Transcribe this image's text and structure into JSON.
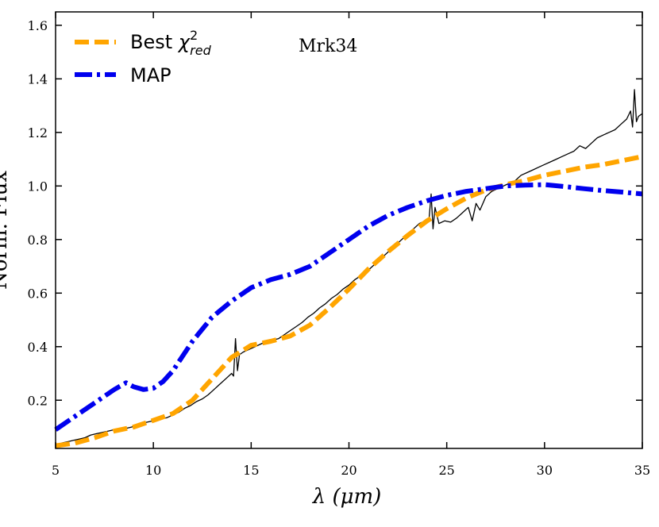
{
  "chart_data": {
    "type": "line",
    "title": "",
    "annotation": "Mrk34",
    "xlabel": "λ (μm)",
    "ylabel": "Norm. Flux",
    "xlim": [
      5,
      35
    ],
    "ylim": [
      0.02,
      1.65
    ],
    "xticks": [
      5,
      10,
      15,
      20,
      25,
      30,
      35
    ],
    "xtick_labels": [
      "5",
      "10",
      "15",
      "20",
      "25",
      "30",
      "35"
    ],
    "yticks": [
      0.2,
      0.4,
      0.6,
      0.8,
      1.0,
      1.2,
      1.4,
      1.6
    ],
    "ytick_labels": [
      "0.2",
      "0.4",
      "0.6",
      "0.8",
      "1.0",
      "1.2",
      "1.4",
      "1.6"
    ],
    "legend": {
      "placement": "top-left",
      "entries": [
        {
          "series": "best",
          "label_main": "Best ",
          "label_chi": "χ",
          "label_sup": "2",
          "label_sub": "red"
        },
        {
          "series": "map",
          "label_main": "MAP"
        }
      ]
    },
    "series": [
      {
        "name": "observed",
        "color": "#000000",
        "style": "solid",
        "x": [
          5.0,
          5.3,
          5.6,
          5.9,
          6.2,
          6.5,
          6.8,
          7.1,
          7.4,
          7.7,
          8.0,
          8.3,
          8.6,
          8.9,
          9.2,
          9.5,
          9.8,
          10.1,
          10.4,
          10.7,
          11.0,
          11.3,
          11.6,
          11.9,
          12.2,
          12.5,
          12.8,
          13.1,
          13.4,
          13.7,
          14.0,
          14.1,
          14.2,
          14.3,
          14.4,
          14.6,
          14.9,
          15.2,
          15.5,
          15.8,
          16.1,
          16.4,
          16.7,
          17.0,
          17.3,
          17.6,
          17.9,
          18.2,
          18.5,
          18.8,
          19.1,
          19.4,
          19.7,
          20.0,
          20.3,
          20.6,
          20.9,
          21.2,
          21.5,
          21.8,
          22.1,
          22.4,
          22.7,
          23.0,
          23.3,
          23.6,
          23.9,
          24.1,
          24.2,
          24.3,
          24.4,
          24.6,
          24.9,
          25.2,
          25.5,
          25.8,
          26.1,
          26.3,
          26.5,
          26.7,
          27.0,
          27.3,
          27.6,
          27.9,
          28.2,
          28.5,
          28.8,
          29.1,
          29.4,
          29.7,
          30.0,
          30.3,
          30.6,
          30.9,
          31.2,
          31.5,
          31.8,
          32.1,
          32.4,
          32.7,
          33.0,
          33.3,
          33.6,
          33.9,
          34.2,
          34.4,
          34.5,
          34.6,
          34.7,
          34.8,
          35.0
        ],
        "y": [
          0.03,
          0.04,
          0.045,
          0.05,
          0.055,
          0.06,
          0.07,
          0.075,
          0.08,
          0.085,
          0.09,
          0.085,
          0.095,
          0.1,
          0.11,
          0.115,
          0.12,
          0.125,
          0.13,
          0.135,
          0.145,
          0.155,
          0.17,
          0.18,
          0.195,
          0.205,
          0.22,
          0.24,
          0.26,
          0.28,
          0.3,
          0.29,
          0.43,
          0.31,
          0.37,
          0.38,
          0.39,
          0.4,
          0.41,
          0.42,
          0.425,
          0.43,
          0.445,
          0.46,
          0.475,
          0.49,
          0.51,
          0.525,
          0.545,
          0.56,
          0.58,
          0.595,
          0.615,
          0.63,
          0.65,
          0.665,
          0.68,
          0.7,
          0.72,
          0.74,
          0.76,
          0.78,
          0.8,
          0.82,
          0.84,
          0.86,
          0.87,
          0.88,
          0.97,
          0.84,
          0.92,
          0.86,
          0.87,
          0.865,
          0.88,
          0.9,
          0.92,
          0.87,
          0.935,
          0.91,
          0.96,
          0.98,
          0.99,
          1.0,
          1.01,
          1.02,
          1.04,
          1.05,
          1.06,
          1.07,
          1.08,
          1.09,
          1.1,
          1.11,
          1.12,
          1.13,
          1.15,
          1.14,
          1.16,
          1.18,
          1.19,
          1.2,
          1.21,
          1.23,
          1.25,
          1.28,
          1.22,
          1.36,
          1.24,
          1.26,
          1.27
        ]
      },
      {
        "name": "best",
        "color": "#FFA500",
        "style": "dashed",
        "x": [
          5.0,
          6.0,
          7.0,
          8.0,
          9.0,
          10.0,
          11.0,
          12.0,
          13.0,
          14.0,
          15.0,
          16.0,
          17.0,
          18.0,
          19.0,
          20.0,
          21.0,
          22.0,
          23.0,
          24.0,
          25.0,
          26.0,
          27.0,
          28.0,
          29.0,
          30.0,
          31.0,
          32.0,
          33.0,
          34.0,
          35.0
        ],
        "y": [
          0.03,
          0.04,
          0.06,
          0.085,
          0.1,
          0.125,
          0.15,
          0.2,
          0.28,
          0.36,
          0.405,
          0.42,
          0.44,
          0.48,
          0.545,
          0.615,
          0.69,
          0.755,
          0.815,
          0.87,
          0.915,
          0.955,
          0.985,
          1.005,
          1.02,
          1.04,
          1.055,
          1.07,
          1.08,
          1.095,
          1.11
        ]
      },
      {
        "name": "map",
        "color": "#0000EE",
        "style": "dashdot",
        "x": [
          5.0,
          6.0,
          7.0,
          8.0,
          8.6,
          9.0,
          9.5,
          10.0,
          10.5,
          11.0,
          12.0,
          13.0,
          14.0,
          15.0,
          16.0,
          17.0,
          18.0,
          19.0,
          20.0,
          21.0,
          22.0,
          23.0,
          24.0,
          25.0,
          26.0,
          27.0,
          28.0,
          29.0,
          30.0,
          31.0,
          32.0,
          33.0,
          34.0,
          35.0
        ],
        "y": [
          0.09,
          0.14,
          0.19,
          0.24,
          0.265,
          0.25,
          0.24,
          0.245,
          0.27,
          0.31,
          0.42,
          0.51,
          0.57,
          0.62,
          0.65,
          0.67,
          0.7,
          0.75,
          0.8,
          0.85,
          0.89,
          0.92,
          0.945,
          0.965,
          0.98,
          0.99,
          1.0,
          1.003,
          1.005,
          0.998,
          0.99,
          0.983,
          0.977,
          0.97
        ]
      }
    ]
  }
}
